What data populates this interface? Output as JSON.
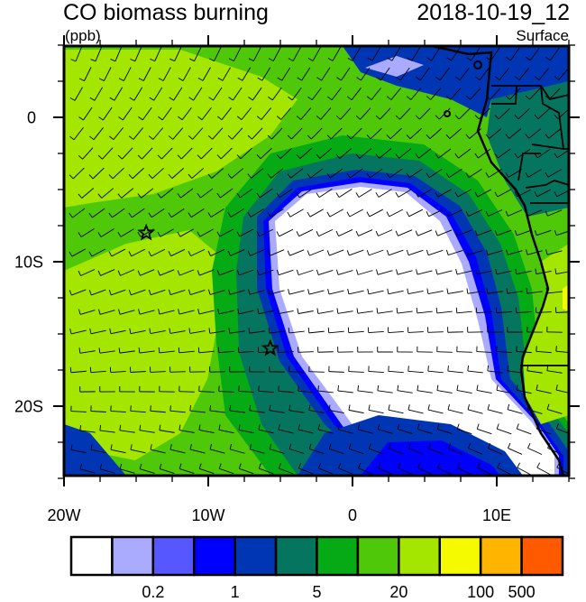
{
  "title": "CO biomass burning",
  "date": "2018-10-19_12",
  "units": "(ppb)",
  "level": "Surface",
  "map": {
    "lon_range": [
      -20,
      15
    ],
    "lat_range": [
      -25,
      5
    ],
    "lon_labels": [
      "20W",
      "10W",
      "0",
      "10E"
    ],
    "lat_labels": [
      "0",
      "10S",
      "20S"
    ],
    "markers": [
      {
        "type": "star",
        "lon": -14.3,
        "lat": -8
      },
      {
        "type": "star",
        "lon": -5.7,
        "lat": -16
      }
    ]
  },
  "colorbar": {
    "colors": [
      "#ffffff",
      "#aaaaff",
      "#5757ff",
      "#0000ff",
      "#0036b4",
      "#057560",
      "#06aa14",
      "#50c80a",
      "#a5e600",
      "#f5fa00",
      "#ffb400",
      "#ff5a00",
      "#ff0d00"
    ],
    "labels": [
      {
        "text": "0.2",
        "boundary": 2
      },
      {
        "text": "1",
        "boundary": 4
      },
      {
        "text": "5",
        "boundary": 6
      },
      {
        "text": "20",
        "boundary": 8
      },
      {
        "text": "100",
        "boundary": 10
      },
      {
        "text": "500",
        "boundary": 11
      }
    ]
  }
}
